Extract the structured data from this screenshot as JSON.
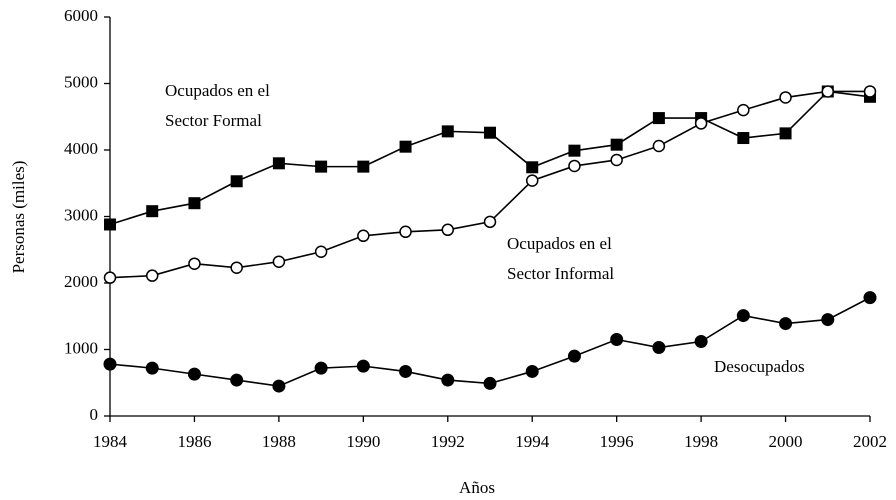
{
  "chart_data": {
    "type": "line",
    "x": [
      1984,
      1985,
      1986,
      1987,
      1988,
      1989,
      1990,
      1991,
      1992,
      1993,
      1994,
      1995,
      1996,
      1997,
      1998,
      1999,
      2000,
      2001,
      2002
    ],
    "series": [
      {
        "color": "#000000",
        "marker": "square",
        "values": [
          2880,
          3080,
          3200,
          3530,
          3800,
          3750,
          3750,
          4050,
          4280,
          4260,
          3740,
          3990,
          4080,
          4480,
          4480,
          4180,
          4250,
          4880,
          4800
        ]
      },
      {
        "color": "#000000",
        "marker": "circle-open",
        "values": [
          2080,
          2110,
          2290,
          2230,
          2320,
          2470,
          2710,
          2770,
          2800,
          2920,
          3540,
          3760,
          3850,
          4060,
          4400,
          4600,
          4790,
          4880,
          4880
        ]
      },
      {
        "color": "#000000",
        "marker": "circle",
        "values": [
          780,
          720,
          630,
          540,
          450,
          720,
          750,
          670,
          540,
          490,
          670,
          900,
          1150,
          1030,
          1120,
          1510,
          1390,
          1450,
          1780
        ]
      }
    ],
    "annotations": [
      [
        "Ocupados en el",
        "Sector Formal"
      ],
      [
        "Ocupados en el",
        "Sector Informal"
      ],
      [
        "Desocupados"
      ]
    ],
    "xlabel": "Años",
    "ylabel": "Personas (miles)",
    "xlim": [
      1984,
      2002
    ],
    "xticks": [
      1984,
      1986,
      1988,
      1990,
      1992,
      1994,
      1996,
      1998,
      2000,
      2002
    ],
    "ylim": [
      0,
      6000
    ],
    "yticks": [
      0,
      1000,
      2000,
      3000,
      4000,
      5000,
      6000
    ]
  }
}
